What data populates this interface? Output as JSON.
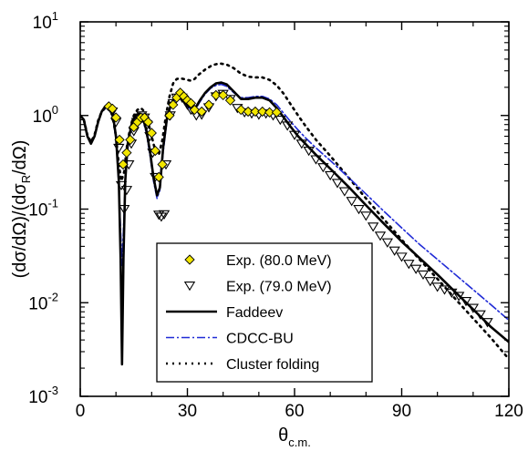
{
  "chart_data": {
    "type": "scatter",
    "title": "",
    "xlabel": {
      "main": "θ",
      "sub": "c.m."
    },
    "ylabel": {
      "p1": "(dσ/dΩ)/(dσ",
      "sub": "R",
      "p2": "/dΩ)"
    },
    "xlim": [
      0,
      120
    ],
    "ylim": [
      0.001,
      10
    ],
    "yscale": "log",
    "grid": false,
    "legend_position": "bottom-left",
    "x_ticks": [
      {
        "value": 0,
        "label": "0"
      },
      {
        "value": 30,
        "label": "30"
      },
      {
        "value": 60,
        "label": "60"
      },
      {
        "value": 90,
        "label": "90"
      },
      {
        "value": 120,
        "label": "120"
      }
    ],
    "y_ticks": [
      {
        "value": 0.001,
        "base": "10",
        "exp": "-3"
      },
      {
        "value": 0.01,
        "base": "10",
        "exp": "-2"
      },
      {
        "value": 0.1,
        "base": "10",
        "exp": "-1"
      },
      {
        "value": 1,
        "base": "10",
        "exp": "0"
      },
      {
        "value": 10,
        "base": "10",
        "exp": "1"
      }
    ],
    "series": [
      {
        "name": "Exp. (80.0 MeV)",
        "kind": "points",
        "marker": "diamond",
        "fill": "#f2e600",
        "stroke": "#000000",
        "points": [
          [
            8,
            1.25
          ],
          [
            9,
            1.18
          ],
          [
            10,
            0.95
          ],
          [
            11,
            0.55
          ],
          [
            12,
            0.3
          ],
          [
            13,
            0.4
          ],
          [
            14,
            0.55
          ],
          [
            15,
            0.75
          ],
          [
            16,
            0.85
          ],
          [
            17,
            0.95
          ],
          [
            18,
            0.95
          ],
          [
            19,
            0.85
          ],
          [
            20,
            0.65
          ],
          [
            21,
            0.42
          ],
          [
            22,
            0.22
          ],
          [
            23,
            0.3
          ],
          [
            25,
            1.0
          ],
          [
            26,
            1.3
          ],
          [
            27,
            1.55
          ],
          [
            28,
            1.75
          ],
          [
            29,
            1.6
          ],
          [
            30,
            1.45
          ],
          [
            31,
            1.35
          ],
          [
            32,
            1.15
          ],
          [
            34,
            1.1
          ],
          [
            36,
            1.3
          ],
          [
            38,
            1.65
          ],
          [
            40,
            1.65
          ],
          [
            42,
            1.45
          ],
          [
            45,
            1.15
          ],
          [
            47,
            1.1
          ],
          [
            49,
            1.1
          ],
          [
            51,
            1.1
          ],
          [
            53,
            1.08
          ],
          [
            55,
            1.08
          ]
        ]
      },
      {
        "name": "Exp. (79.0 MeV)",
        "kind": "points",
        "marker": "triangle-down",
        "fill": "none",
        "stroke": "#000000",
        "points": [
          [
            9,
            1.1
          ],
          [
            10,
            0.85
          ],
          [
            10.8,
            0.45
          ],
          [
            11.5,
            0.18
          ],
          [
            12.3,
            0.1
          ],
          [
            13,
            0.16
          ],
          [
            13.6,
            0.3
          ],
          [
            14.3,
            0.5
          ],
          [
            15,
            0.68
          ],
          [
            15.8,
            0.85
          ],
          [
            16.5,
            0.95
          ],
          [
            17.2,
            1.0
          ],
          [
            18,
            0.95
          ],
          [
            18.7,
            0.8
          ],
          [
            19.5,
            0.6
          ],
          [
            20.3,
            0.4
          ],
          [
            21,
            0.22
          ],
          [
            22,
            0.087
          ],
          [
            22.7,
            0.083
          ],
          [
            23.5,
            0.088
          ],
          [
            24,
            0.3
          ],
          [
            25.2,
            1.0
          ],
          [
            26,
            1.35
          ],
          [
            27,
            1.55
          ],
          [
            28.5,
            1.55
          ],
          [
            30,
            1.3
          ],
          [
            31,
            1.15
          ],
          [
            32.5,
            1.0
          ],
          [
            34,
            1.02
          ],
          [
            36,
            1.22
          ],
          [
            38,
            1.6
          ],
          [
            40,
            1.7
          ],
          [
            42,
            1.5
          ],
          [
            44,
            1.2
          ],
          [
            46,
            1.08
          ],
          [
            48,
            1.05
          ],
          [
            50,
            1.02
          ],
          [
            52,
            1.05
          ],
          [
            54,
            1.0
          ],
          [
            56,
            0.9
          ],
          [
            58,
            0.78
          ],
          [
            60,
            0.62
          ],
          [
            62,
            0.5
          ],
          [
            64,
            0.42
          ],
          [
            66,
            0.34
          ],
          [
            68,
            0.28
          ],
          [
            70,
            0.23
          ],
          [
            72,
            0.19
          ],
          [
            74,
            0.155
          ],
          [
            76,
            0.122
          ],
          [
            78,
            0.1
          ],
          [
            80,
            0.085
          ],
          [
            82,
            0.065
          ],
          [
            84,
            0.052
          ],
          [
            86,
            0.044
          ],
          [
            88,
            0.036
          ],
          [
            90,
            0.031
          ],
          [
            92,
            0.026
          ],
          [
            94,
            0.023
          ],
          [
            96,
            0.02
          ],
          [
            98,
            0.017
          ],
          [
            100,
            0.0148
          ],
          [
            102,
            0.0138
          ],
          [
            104,
            0.0128
          ],
          [
            106,
            0.0118
          ],
          [
            108,
            0.0104
          ],
          [
            110,
            0.0088
          ],
          [
            112,
            0.0075
          ],
          [
            114,
            0.0062
          ]
        ]
      },
      {
        "name": "Faddeev",
        "kind": "line",
        "color": "#000000",
        "dash": "none",
        "width": 2.6,
        "points": [
          [
            0,
            1.0
          ],
          [
            1,
            0.9
          ],
          [
            2,
            0.6
          ],
          [
            3,
            0.5
          ],
          [
            4,
            0.6
          ],
          [
            5,
            0.85
          ],
          [
            6,
            1.1
          ],
          [
            7,
            1.25
          ],
          [
            8,
            1.3
          ],
          [
            9,
            1.1
          ],
          [
            10,
            0.6
          ],
          [
            10.8,
            0.2
          ],
          [
            11.3,
            0.03
          ],
          [
            11.7,
            0.0022
          ],
          [
            12.1,
            0.03
          ],
          [
            12.6,
            0.2
          ],
          [
            13.3,
            0.5
          ],
          [
            14.5,
            0.85
          ],
          [
            15.5,
            1.0
          ],
          [
            16.5,
            1.05
          ],
          [
            17.5,
            0.95
          ],
          [
            18.5,
            0.7
          ],
          [
            19.5,
            0.42
          ],
          [
            20.5,
            0.22
          ],
          [
            21.5,
            0.14
          ],
          [
            22.3,
            0.17
          ],
          [
            23.2,
            0.45
          ],
          [
            24.3,
            0.95
          ],
          [
            25.5,
            1.35
          ],
          [
            26.5,
            1.55
          ],
          [
            27.5,
            1.6
          ],
          [
            28.5,
            1.5
          ],
          [
            29.5,
            1.35
          ],
          [
            30.5,
            1.25
          ],
          [
            31.5,
            1.2
          ],
          [
            32.5,
            1.25
          ],
          [
            33.5,
            1.45
          ],
          [
            35,
            1.75
          ],
          [
            36.5,
            2.0
          ],
          [
            38,
            2.2
          ],
          [
            39.5,
            2.25
          ],
          [
            41,
            2.15
          ],
          [
            43,
            1.8
          ],
          [
            45,
            1.5
          ],
          [
            47,
            1.5
          ],
          [
            49,
            1.55
          ],
          [
            51,
            1.55
          ],
          [
            53,
            1.45
          ],
          [
            55,
            1.2
          ],
          [
            57,
            0.95
          ],
          [
            59,
            0.75
          ],
          [
            61,
            0.6
          ],
          [
            63,
            0.5
          ],
          [
            66,
            0.38
          ],
          [
            70,
            0.27
          ],
          [
            75,
            0.175
          ],
          [
            80,
            0.11
          ],
          [
            85,
            0.07
          ],
          [
            90,
            0.045
          ],
          [
            95,
            0.03
          ],
          [
            100,
            0.02
          ],
          [
            105,
            0.013
          ],
          [
            110,
            0.0085
          ],
          [
            115,
            0.0055
          ],
          [
            120,
            0.0038
          ]
        ]
      },
      {
        "name": "CDCC-BU",
        "kind": "line",
        "color": "#1f2ad6",
        "dash": "9 3 2 3",
        "width": 1.6,
        "points": [
          [
            0,
            1.0
          ],
          [
            1,
            0.9
          ],
          [
            2,
            0.6
          ],
          [
            3,
            0.5
          ],
          [
            4,
            0.6
          ],
          [
            5,
            0.85
          ],
          [
            6,
            1.1
          ],
          [
            7,
            1.2
          ],
          [
            8,
            1.25
          ],
          [
            9,
            1.05
          ],
          [
            10,
            0.55
          ],
          [
            10.8,
            0.18
          ],
          [
            11.3,
            0.06
          ],
          [
            11.7,
            0.025
          ],
          [
            12.1,
            0.06
          ],
          [
            12.6,
            0.2
          ],
          [
            13.3,
            0.45
          ],
          [
            14.5,
            0.8
          ],
          [
            15.5,
            0.95
          ],
          [
            16.5,
            1.0
          ],
          [
            17.5,
            0.9
          ],
          [
            18.5,
            0.65
          ],
          [
            19.5,
            0.38
          ],
          [
            20.5,
            0.2
          ],
          [
            21.5,
            0.13
          ],
          [
            22.3,
            0.16
          ],
          [
            23.2,
            0.4
          ],
          [
            24.3,
            0.9
          ],
          [
            25.5,
            1.3
          ],
          [
            26.5,
            1.5
          ],
          [
            27.5,
            1.55
          ],
          [
            28.5,
            1.45
          ],
          [
            29.5,
            1.3
          ],
          [
            30.5,
            1.2
          ],
          [
            31.5,
            1.15
          ],
          [
            32.5,
            1.2
          ],
          [
            33.5,
            1.4
          ],
          [
            35,
            1.7
          ],
          [
            36.5,
            1.95
          ],
          [
            38,
            2.1
          ],
          [
            39.5,
            2.15
          ],
          [
            41,
            2.05
          ],
          [
            43,
            1.75
          ],
          [
            45,
            1.55
          ],
          [
            47,
            1.55
          ],
          [
            49,
            1.6
          ],
          [
            51,
            1.6
          ],
          [
            53,
            1.5
          ],
          [
            55,
            1.3
          ],
          [
            57,
            1.05
          ],
          [
            59,
            0.85
          ],
          [
            61,
            0.7
          ],
          [
            63,
            0.58
          ],
          [
            66,
            0.45
          ],
          [
            70,
            0.33
          ],
          [
            75,
            0.22
          ],
          [
            80,
            0.145
          ],
          [
            85,
            0.095
          ],
          [
            90,
            0.063
          ],
          [
            95,
            0.042
          ],
          [
            100,
            0.029
          ],
          [
            105,
            0.02
          ],
          [
            110,
            0.0138
          ],
          [
            115,
            0.0095
          ],
          [
            120,
            0.0065
          ]
        ]
      },
      {
        "name": "Cluster folding",
        "kind": "line",
        "color": "#000000",
        "dash": "2 5",
        "width": 2.6,
        "points": [
          [
            0,
            1.0
          ],
          [
            1,
            0.9
          ],
          [
            2,
            0.62
          ],
          [
            3,
            0.52
          ],
          [
            4,
            0.62
          ],
          [
            5,
            0.88
          ],
          [
            6,
            1.1
          ],
          [
            7,
            1.2
          ],
          [
            8,
            1.2
          ],
          [
            9,
            1.0
          ],
          [
            10,
            0.6
          ],
          [
            10.8,
            0.3
          ],
          [
            11.5,
            0.2
          ],
          [
            12.3,
            0.25
          ],
          [
            13,
            0.45
          ],
          [
            14,
            0.75
          ],
          [
            15,
            1.0
          ],
          [
            16,
            1.15
          ],
          [
            17,
            1.2
          ],
          [
            18,
            1.1
          ],
          [
            19,
            0.85
          ],
          [
            20,
            0.6
          ],
          [
            21,
            0.42
          ],
          [
            22,
            0.38
          ],
          [
            23,
            0.55
          ],
          [
            24,
            1.0
          ],
          [
            25,
            1.6
          ],
          [
            26,
            2.2
          ],
          [
            27,
            2.45
          ],
          [
            28,
            2.5
          ],
          [
            29,
            2.45
          ],
          [
            30,
            2.4
          ],
          [
            31,
            2.35
          ],
          [
            32,
            2.45
          ],
          [
            33,
            2.7
          ],
          [
            35,
            3.1
          ],
          [
            37,
            3.45
          ],
          [
            39,
            3.6
          ],
          [
            41,
            3.5
          ],
          [
            43,
            3.2
          ],
          [
            45,
            2.8
          ],
          [
            47,
            2.6
          ],
          [
            49,
            2.55
          ],
          [
            51,
            2.55
          ],
          [
            53,
            2.4
          ],
          [
            55,
            2.1
          ],
          [
            57,
            1.7
          ],
          [
            59,
            1.3
          ],
          [
            61,
            1.0
          ],
          [
            63,
            0.78
          ],
          [
            66,
            0.55
          ],
          [
            70,
            0.37
          ],
          [
            75,
            0.22
          ],
          [
            80,
            0.13
          ],
          [
            85,
            0.078
          ],
          [
            90,
            0.047
          ],
          [
            95,
            0.029
          ],
          [
            100,
            0.018
          ],
          [
            105,
            0.011
          ],
          [
            110,
            0.0068
          ],
          [
            115,
            0.0042
          ],
          [
            120,
            0.0025
          ]
        ]
      }
    ]
  }
}
